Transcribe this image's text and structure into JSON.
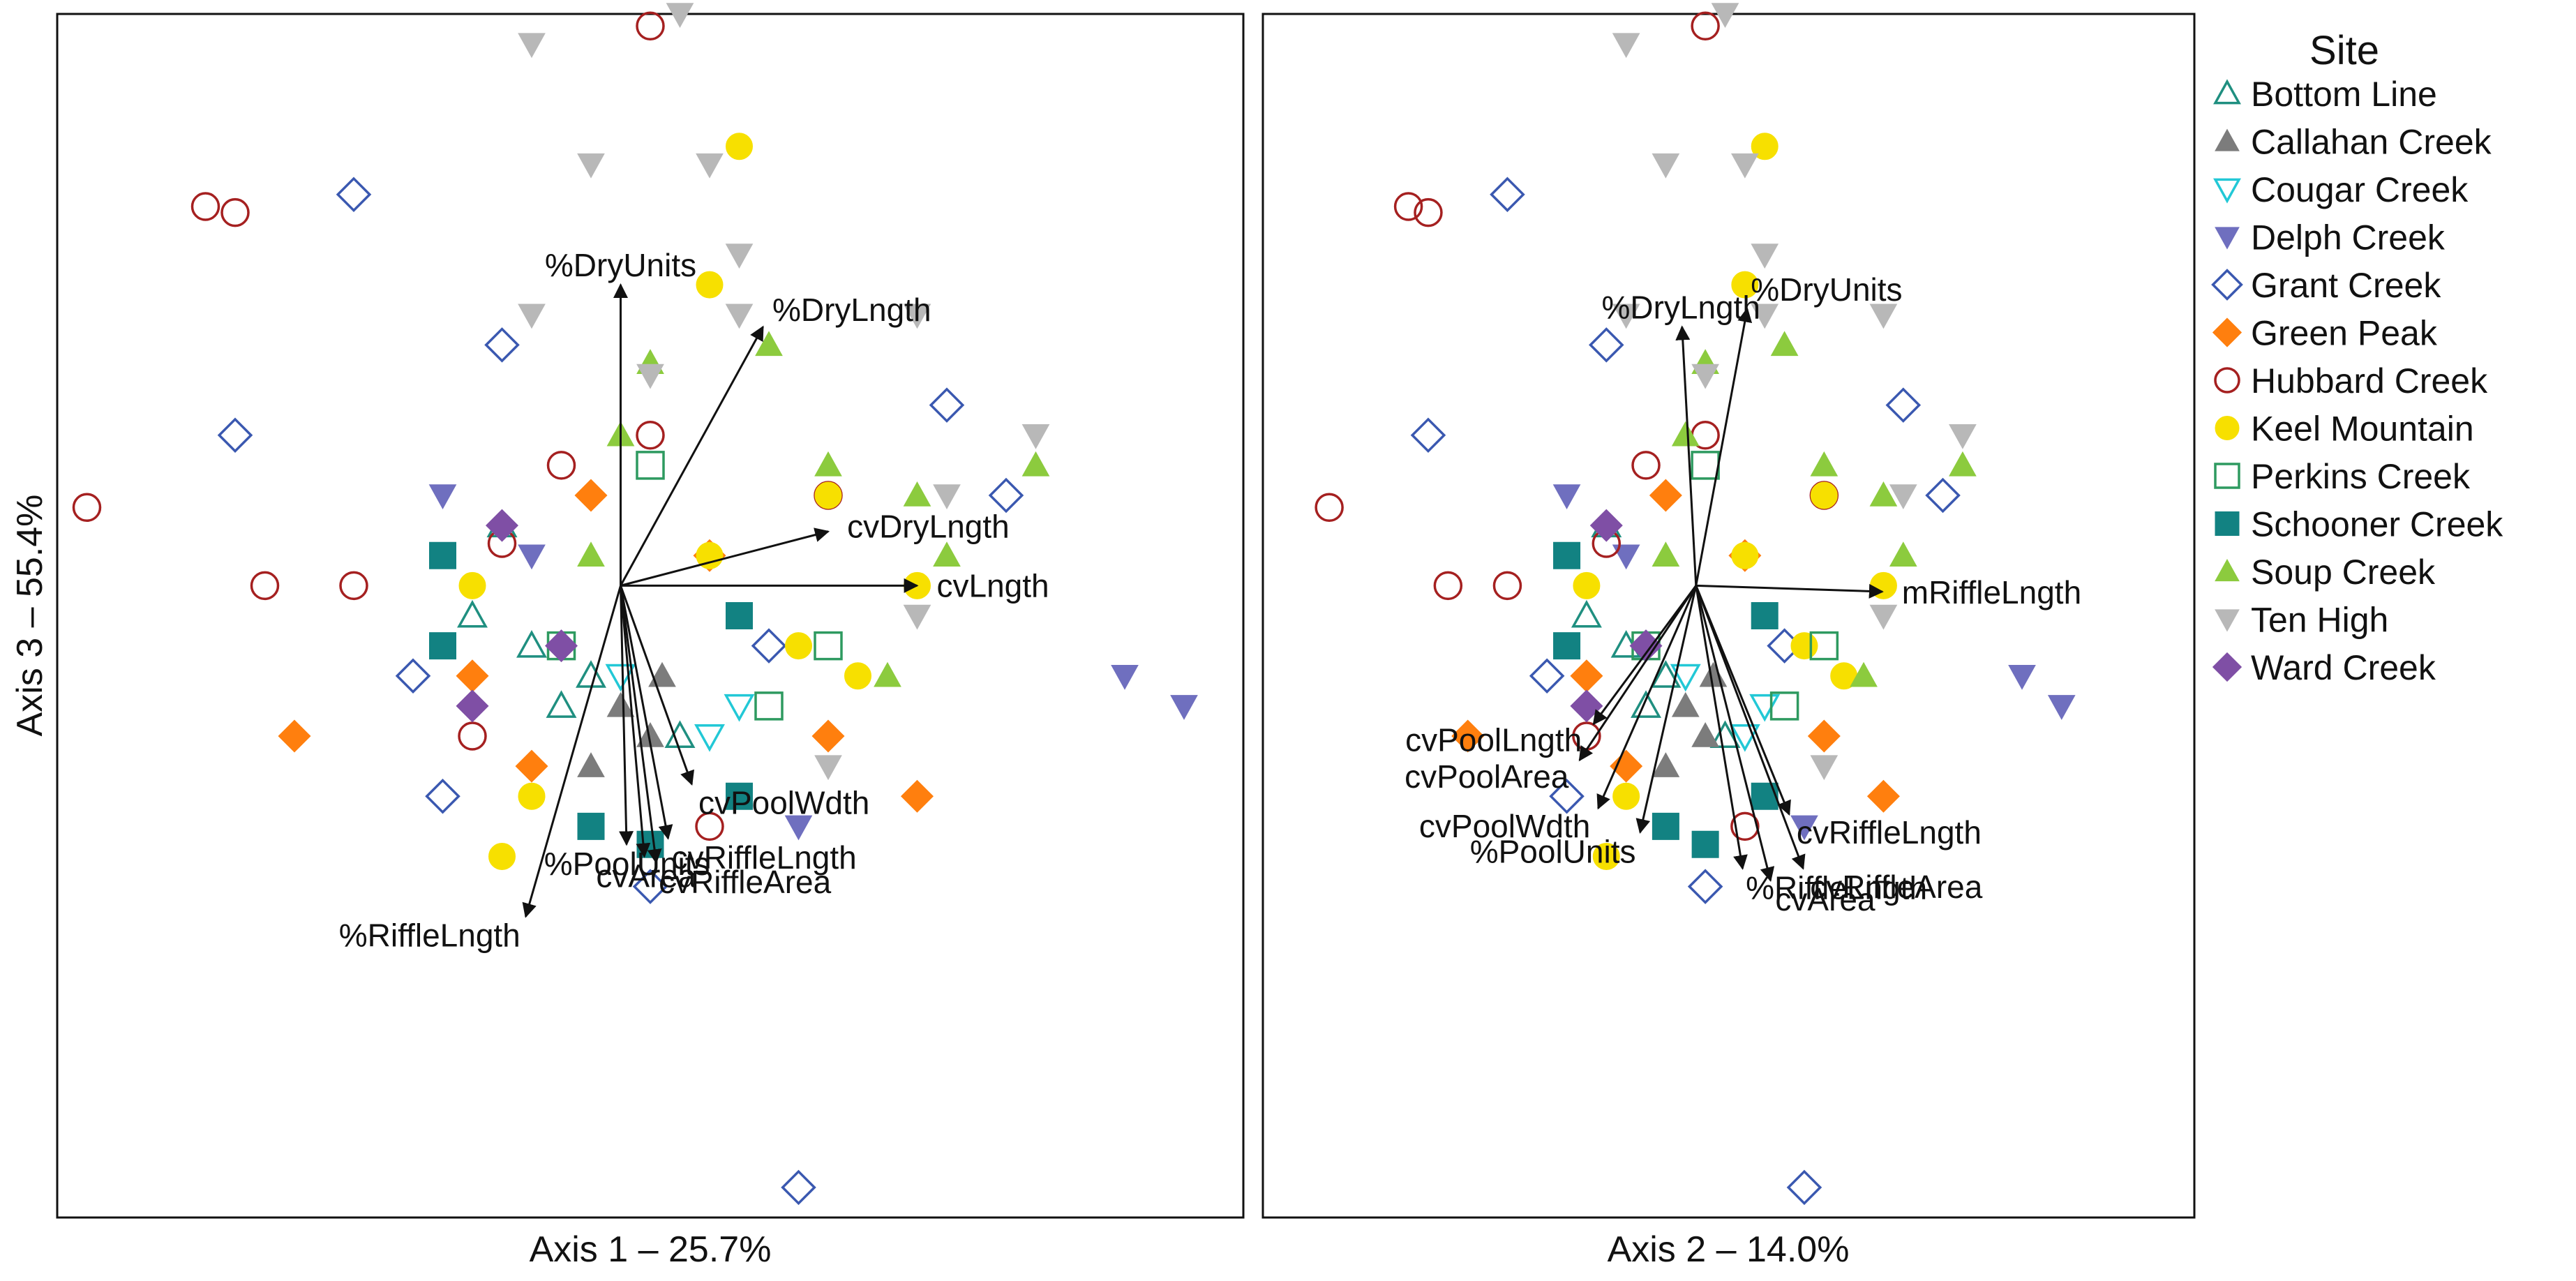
{
  "chart_data": {
    "type": "scatter",
    "title": "",
    "ordination": "NMS biplot",
    "panels": [
      {
        "id": "axis1-vs-axis3",
        "xlabel": "Axis 1 – 25.7%",
        "ylabel": "Axis 3 – 55.4%",
        "xlim": [
          -1.0,
          1.0
        ],
        "ylim": [
          -1.0,
          1.0
        ],
        "origin": [
          -0.05,
          0.05
        ],
        "vectors": [
          {
            "label": "%DryUnits",
            "end": [
              -0.05,
              0.55
            ]
          },
          {
            "label": "%DryLngth",
            "end": [
              0.19,
              0.48
            ]
          },
          {
            "label": "cvDryLngth",
            "end": [
              0.3,
              0.14
            ]
          },
          {
            "label": "cvLngth",
            "end": [
              0.45,
              0.05
            ]
          },
          {
            "label": "cvPoolWdth",
            "end": [
              0.07,
              -0.28
            ]
          },
          {
            "label": "%PoolUnits",
            "end": [
              -0.04,
              -0.38
            ]
          },
          {
            "label": "cvRiffleLngth",
            "end": [
              0.03,
              -0.37
            ]
          },
          {
            "label": "cvRiffleArea",
            "end": [
              0.01,
              -0.41
            ]
          },
          {
            "label": "cvArea",
            "end": [
              -0.01,
              -0.4
            ]
          },
          {
            "label": "%RiffleLngth",
            "end": [
              -0.21,
              -0.5
            ]
          }
        ]
      },
      {
        "id": "axis2-vs-axis3",
        "xlabel": "Axis 2 – 14.0%",
        "ylabel": "",
        "xlim": [
          -1.0,
          1.0
        ],
        "ylim": [
          -1.0,
          1.0
        ],
        "origin": [
          -0.07,
          0.05
        ],
        "vectors": [
          {
            "label": "%DryUnits",
            "end": [
              0.04,
              0.51
            ]
          },
          {
            "label": "%DryLngth",
            "end": [
              -0.1,
              0.48
            ]
          },
          {
            "label": "mRiffleLngth",
            "end": [
              0.33,
              0.04
            ]
          },
          {
            "label": "cvPoolLngth",
            "end": [
              -0.29,
              -0.18
            ]
          },
          {
            "label": "cvPoolArea",
            "end": [
              -0.32,
              -0.24
            ]
          },
          {
            "label": "cvPoolWdth",
            "end": [
              -0.28,
              -0.32
            ]
          },
          {
            "label": "%PoolUnits",
            "end": [
              -0.19,
              -0.36
            ]
          },
          {
            "label": "%RiffleLngth",
            "end": [
              0.03,
              -0.42
            ]
          },
          {
            "label": "cvRiffleLngth",
            "end": [
              0.13,
              -0.33
            ]
          },
          {
            "label": "cvRiffleArea",
            "end": [
              0.16,
              -0.42
            ]
          },
          {
            "label": "cvArea",
            "end": [
              0.09,
              -0.44
            ]
          }
        ]
      }
    ],
    "legend": {
      "title": "Site",
      "placement": "right",
      "entries": [
        {
          "name": "Bottom Line",
          "symbol": "triangle-open",
          "color": "#1f8f80"
        },
        {
          "name": "Callahan Creek",
          "symbol": "triangle-filled",
          "color": "#7c7c7c"
        },
        {
          "name": "Cougar Creek",
          "symbol": "triangle-down-open",
          "color": "#22c8d6"
        },
        {
          "name": "Delph Creek",
          "symbol": "triangle-down-filled",
          "color": "#6f6fbf"
        },
        {
          "name": "Grant Creek",
          "symbol": "diamond-open",
          "color": "#3a58b0"
        },
        {
          "name": "Green Peak",
          "symbol": "diamond-filled",
          "color": "#ff7f0e"
        },
        {
          "name": "Hubbard Creek",
          "symbol": "circle-open",
          "color": "#a52020"
        },
        {
          "name": "Keel Mountain",
          "symbol": "circle-filled",
          "color": "#f7e000"
        },
        {
          "name": "Perkins Creek",
          "symbol": "square-open",
          "color": "#2e9a60"
        },
        {
          "name": "Schooner Creek",
          "symbol": "square-filled",
          "color": "#128282"
        },
        {
          "name": "Soup Creek",
          "symbol": "triangle-filled",
          "color": "#8ccb3e"
        },
        {
          "name": "Ten High",
          "symbol": "triangle-down-filled",
          "color": "#b8b8b8"
        },
        {
          "name": "Ward Creek",
          "symbol": "diamond-filled",
          "color": "#7f4fa5"
        }
      ]
    },
    "series": [
      {
        "name": "Bottom Line",
        "points": [
          [
            -0.2,
            -0.05
          ],
          [
            -0.1,
            -0.1
          ],
          [
            -0.25,
            0.15
          ],
          [
            0.05,
            -0.2
          ],
          [
            -0.3,
            0.0
          ],
          [
            -0.15,
            -0.15
          ]
        ]
      },
      {
        "name": "Callahan Creek",
        "points": [
          [
            -0.05,
            -0.15
          ],
          [
            0.0,
            -0.2
          ],
          [
            -0.1,
            -0.25
          ],
          [
            0.02,
            -0.1
          ]
        ]
      },
      {
        "name": "Cougar Creek",
        "points": [
          [
            0.15,
            -0.15
          ],
          [
            -0.05,
            -0.1
          ],
          [
            0.1,
            -0.2
          ]
        ]
      },
      {
        "name": "Delph Creek",
        "points": [
          [
            -0.35,
            0.2
          ],
          [
            0.25,
            -0.35
          ],
          [
            -0.2,
            0.1
          ],
          [
            0.8,
            -0.1
          ],
          [
            0.9,
            -0.15
          ]
        ]
      },
      {
        "name": "Grant Creek",
        "points": [
          [
            -0.5,
            0.7
          ],
          [
            -0.25,
            0.45
          ],
          [
            -0.7,
            0.3
          ],
          [
            -0.4,
            -0.1
          ],
          [
            0.2,
            -0.05
          ],
          [
            -0.35,
            -0.3
          ],
          [
            0.0,
            -0.45
          ],
          [
            0.25,
            -0.95
          ],
          [
            0.5,
            0.35
          ],
          [
            0.6,
            0.2
          ]
        ]
      },
      {
        "name": "Green Peak",
        "points": [
          [
            -0.6,
            -0.2
          ],
          [
            -0.3,
            -0.1
          ],
          [
            -0.1,
            0.2
          ],
          [
            0.1,
            0.1
          ],
          [
            -0.2,
            -0.25
          ],
          [
            0.3,
            -0.2
          ],
          [
            0.45,
            -0.3
          ]
        ]
      },
      {
        "name": "Hubbard Creek",
        "points": [
          [
            -0.95,
            0.18
          ],
          [
            -0.75,
            0.68
          ],
          [
            -0.7,
            0.67
          ],
          [
            -0.65,
            0.05
          ],
          [
            -0.5,
            0.05
          ],
          [
            -0.25,
            0.12
          ],
          [
            0.0,
            0.3
          ],
          [
            0.3,
            0.2
          ],
          [
            0.0,
            0.98
          ],
          [
            -0.3,
            -0.2
          ],
          [
            0.1,
            -0.35
          ],
          [
            -0.15,
            0.25
          ]
        ]
      },
      {
        "name": "Keel Mountain",
        "points": [
          [
            0.15,
            0.78
          ],
          [
            0.1,
            0.55
          ],
          [
            0.3,
            0.2
          ],
          [
            0.35,
            -0.1
          ],
          [
            0.25,
            -0.05
          ],
          [
            -0.3,
            0.05
          ],
          [
            -0.2,
            -0.3
          ],
          [
            0.45,
            0.05
          ],
          [
            0.1,
            0.1
          ],
          [
            -0.25,
            -0.4
          ]
        ]
      },
      {
        "name": "Perkins Creek",
        "points": [
          [
            0.0,
            0.25
          ],
          [
            0.3,
            -0.05
          ],
          [
            0.2,
            -0.15
          ],
          [
            -0.15,
            -0.05
          ]
        ]
      },
      {
        "name": "Schooner Creek",
        "points": [
          [
            -0.35,
            -0.05
          ],
          [
            -0.1,
            -0.35
          ],
          [
            0.0,
            -0.38
          ],
          [
            0.15,
            -0.3
          ],
          [
            -0.35,
            0.1
          ],
          [
            0.15,
            0.0
          ]
        ]
      },
      {
        "name": "Soup Creek",
        "points": [
          [
            0.2,
            0.45
          ],
          [
            0.0,
            0.42
          ],
          [
            0.65,
            0.25
          ],
          [
            0.45,
            0.2
          ],
          [
            0.5,
            0.1
          ],
          [
            -0.05,
            0.3
          ],
          [
            0.3,
            0.25
          ],
          [
            0.4,
            -0.1
          ],
          [
            -0.1,
            0.1
          ]
        ]
      },
      {
        "name": "Ten High",
        "points": [
          [
            0.05,
            1.0
          ],
          [
            -0.2,
            0.95
          ],
          [
            -0.1,
            0.75
          ],
          [
            0.1,
            0.75
          ],
          [
            0.15,
            0.6
          ],
          [
            0.15,
            0.5
          ],
          [
            0.45,
            0.5
          ],
          [
            0.65,
            0.3
          ],
          [
            -0.2,
            0.5
          ],
          [
            0.0,
            0.4
          ],
          [
            0.5,
            0.2
          ],
          [
            0.45,
            0.0
          ],
          [
            0.3,
            -0.25
          ]
        ]
      },
      {
        "name": "Ward Creek",
        "points": [
          [
            -0.25,
            0.15
          ],
          [
            -0.15,
            -0.05
          ],
          [
            -0.3,
            -0.15
          ]
        ]
      }
    ]
  }
}
